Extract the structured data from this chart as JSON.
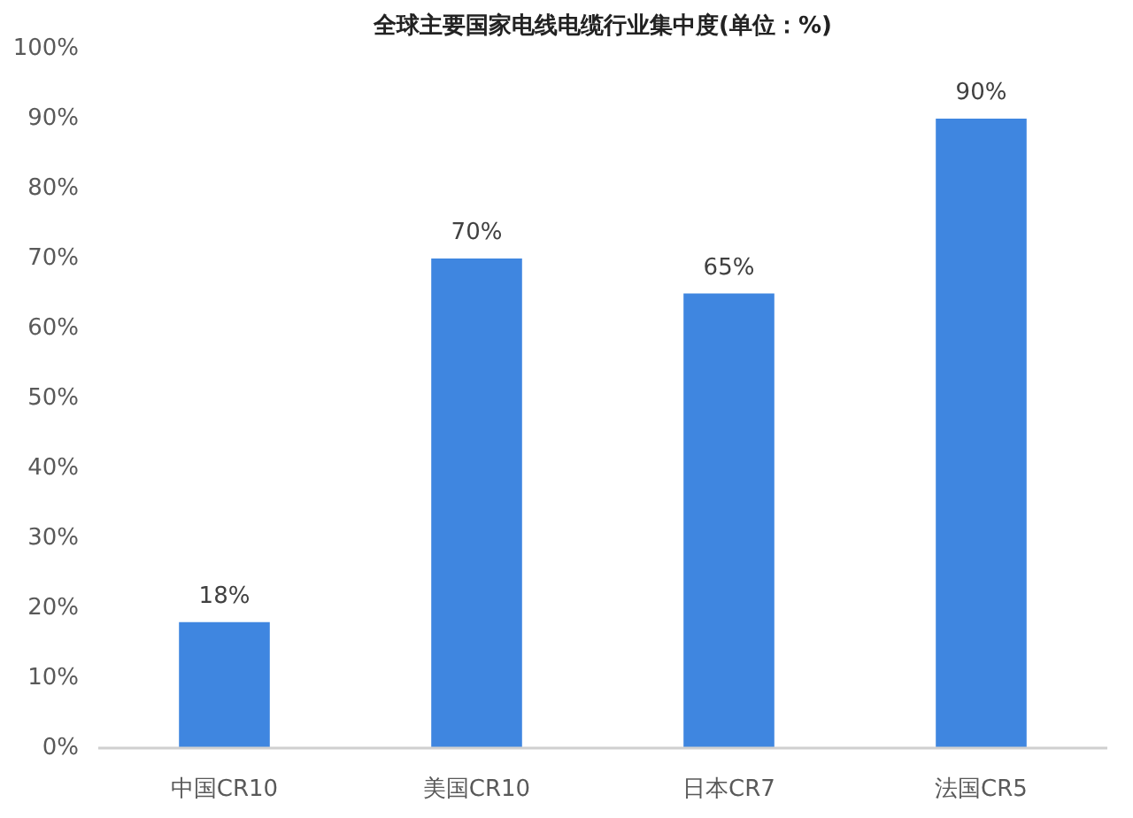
{
  "chart_data": {
    "type": "bar",
    "title": "全球主要国家电线电缆行业集中度(单位：%)",
    "categories": [
      "中国CR10",
      "美国CR10",
      "日本CR7",
      "法国CR5"
    ],
    "values": [
      18,
      70,
      65,
      90
    ],
    "color": "#3f86e0",
    "value_labels": [
      "18%",
      "70%",
      "65%",
      "90%"
    ],
    "ylim": [
      0,
      100
    ],
    "yticks": [
      {
        "value": 0,
        "label": "0%"
      },
      {
        "value": 10,
        "label": "10%"
      },
      {
        "value": 20,
        "label": "20%"
      },
      {
        "value": 30,
        "label": "30%"
      },
      {
        "value": 40,
        "label": "40%"
      },
      {
        "value": 50,
        "label": "50%"
      },
      {
        "value": 60,
        "label": "60%"
      },
      {
        "value": 70,
        "label": "70%"
      },
      {
        "value": 80,
        "label": "80%"
      },
      {
        "value": 90,
        "label": "90%"
      },
      {
        "value": 100,
        "label": "100%"
      }
    ],
    "grid": false
  }
}
